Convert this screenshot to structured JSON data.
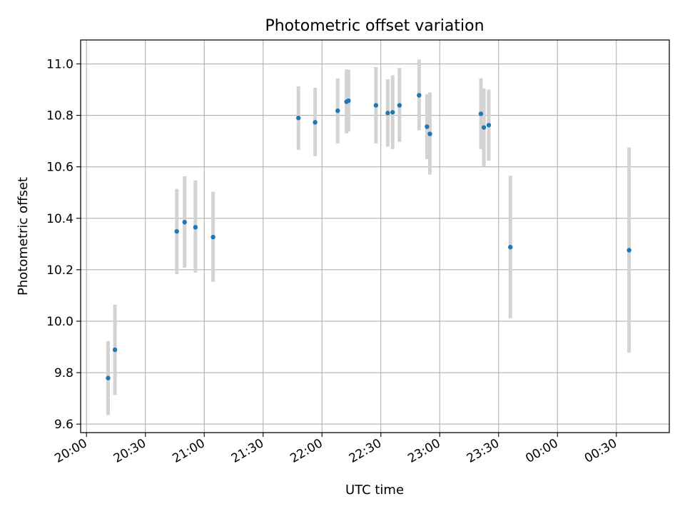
{
  "chart_data": {
    "type": "scatter",
    "title": "Photometric offset variation",
    "xlabel": "UTC time",
    "ylabel": "Photometric offset",
    "x_axis": {
      "kind": "time",
      "min": "2024-01-01T19:57:00",
      "max": "2024-01-02T00:57:00",
      "ticks": [
        {
          "t": "2024-01-01T20:00:00",
          "label": "20:00"
        },
        {
          "t": "2024-01-01T20:30:00",
          "label": "20:30"
        },
        {
          "t": "2024-01-01T21:00:00",
          "label": "21:00"
        },
        {
          "t": "2024-01-01T21:30:00",
          "label": "21:30"
        },
        {
          "t": "2024-01-01T22:00:00",
          "label": "22:00"
        },
        {
          "t": "2024-01-01T22:30:00",
          "label": "22:30"
        },
        {
          "t": "2024-01-01T23:00:00",
          "label": "23:00"
        },
        {
          "t": "2024-01-01T23:30:00",
          "label": "23:30"
        },
        {
          "t": "2024-01-02T00:00:00",
          "label": "00:00"
        },
        {
          "t": "2024-01-02T00:30:00",
          "label": "00:30"
        }
      ]
    },
    "y_axis": {
      "min": 9.567,
      "max": 11.093,
      "ticks": [
        9.6,
        9.8,
        10.0,
        10.2,
        10.4,
        10.6,
        10.8,
        11.0
      ],
      "tick_labels": [
        "9.6",
        "9.8",
        "10.0",
        "10.2",
        "10.4",
        "10.6",
        "10.8",
        "11.0"
      ]
    },
    "grid": true,
    "marker_color": "#1f77b4",
    "errorbar_color": "#d3d3d3",
    "points": [
      {
        "t": "2024-01-01T20:11:00",
        "y": 9.779,
        "lo": 9.635,
        "hi": 9.923
      },
      {
        "t": "2024-01-01T20:14:30",
        "y": 9.889,
        "lo": 9.713,
        "hi": 10.064
      },
      {
        "t": "2024-01-01T20:46:00",
        "y": 10.349,
        "lo": 10.183,
        "hi": 10.514
      },
      {
        "t": "2024-01-01T20:50:00",
        "y": 10.385,
        "lo": 10.208,
        "hi": 10.563
      },
      {
        "t": "2024-01-01T20:55:30",
        "y": 10.365,
        "lo": 10.189,
        "hi": 10.547
      },
      {
        "t": "2024-01-01T21:04:30",
        "y": 10.327,
        "lo": 10.153,
        "hi": 10.503
      },
      {
        "t": "2024-01-01T21:48:00",
        "y": 10.79,
        "lo": 10.666,
        "hi": 10.913
      },
      {
        "t": "2024-01-01T21:56:30",
        "y": 10.773,
        "lo": 10.641,
        "hi": 10.907
      },
      {
        "t": "2024-01-01T22:08:00",
        "y": 10.818,
        "lo": 10.691,
        "hi": 10.944
      },
      {
        "t": "2024-01-01T22:12:30",
        "y": 10.853,
        "lo": 10.73,
        "hi": 10.979
      },
      {
        "t": "2024-01-01T22:13:30",
        "y": 10.857,
        "lo": 10.737,
        "hi": 10.977
      },
      {
        "t": "2024-01-01T22:27:30",
        "y": 10.839,
        "lo": 10.691,
        "hi": 10.988
      },
      {
        "t": "2024-01-01T22:33:30",
        "y": 10.809,
        "lo": 10.678,
        "hi": 10.94
      },
      {
        "t": "2024-01-01T22:36:00",
        "y": 10.812,
        "lo": 10.669,
        "hi": 10.956
      },
      {
        "t": "2024-01-01T22:39:30",
        "y": 10.839,
        "lo": 10.697,
        "hi": 10.984
      },
      {
        "t": "2024-01-01T22:49:30",
        "y": 10.878,
        "lo": 10.742,
        "hi": 11.017
      },
      {
        "t": "2024-01-01T22:53:30",
        "y": 10.756,
        "lo": 10.63,
        "hi": 10.883
      },
      {
        "t": "2024-01-01T22:55:00",
        "y": 10.728,
        "lo": 10.57,
        "hi": 10.889
      },
      {
        "t": "2024-01-01T23:21:00",
        "y": 10.806,
        "lo": 10.669,
        "hi": 10.944
      },
      {
        "t": "2024-01-01T23:22:30",
        "y": 10.753,
        "lo": 10.601,
        "hi": 10.905
      },
      {
        "t": "2024-01-01T23:25:00",
        "y": 10.762,
        "lo": 10.624,
        "hi": 10.9
      },
      {
        "t": "2024-01-01T23:36:00",
        "y": 10.288,
        "lo": 10.012,
        "hi": 10.565
      },
      {
        "t": "2024-01-02T00:36:30",
        "y": 10.276,
        "lo": 9.878,
        "hi": 10.675
      }
    ]
  }
}
